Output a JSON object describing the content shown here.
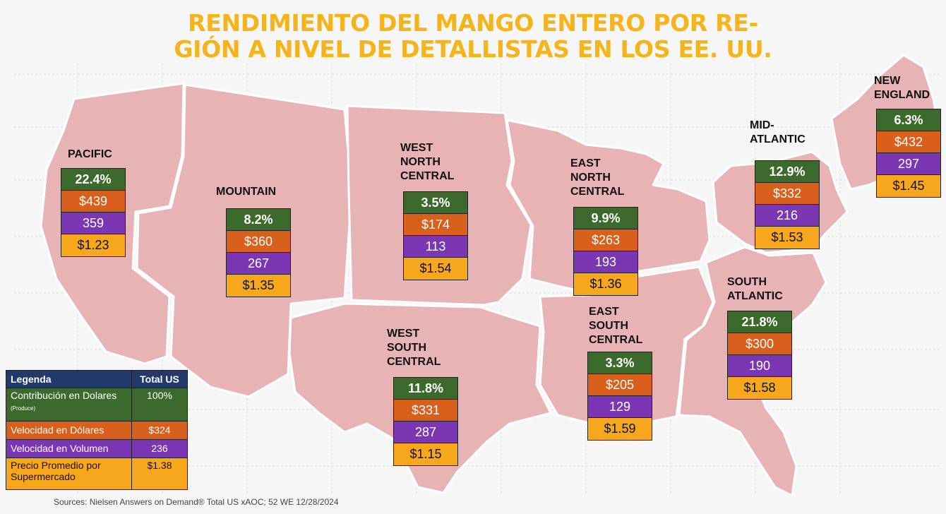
{
  "title": {
    "line1": "RENDIMIENTO DEL MANGO ENTERO POR RE-",
    "line2": "GIÓN A NIVEL DE DETALLISTAS EN LOS EE. UU."
  },
  "colors": {
    "map_fill": "#e8b3b5",
    "title": "#f4b41a",
    "share": "#3c6a2c",
    "dollar_velocity": "#d8601c",
    "volume_velocity": "#7b37b3",
    "avg_price": "#f7a71c",
    "legend_header": "#23396b"
  },
  "regions": {
    "pacific": {
      "name": "PACIFIC",
      "share": "22.4%",
      "dollar": "$439",
      "volume": "359",
      "price": "$1.23"
    },
    "mountain": {
      "name": "MOUNTAIN",
      "share": "8.2%",
      "dollar": "$360",
      "volume": "267",
      "price": "$1.35"
    },
    "wnc": {
      "name_l1": "WEST",
      "name_l2": "NORTH",
      "name_l3": "CENTRAL",
      "share": "3.5%",
      "dollar": "$174",
      "volume": "113",
      "price": "$1.54"
    },
    "enc": {
      "name_l1": "EAST",
      "name_l2": "NORTH",
      "name_l3": "CENTRAL",
      "share": "9.9%",
      "dollar": "$263",
      "volume": "193",
      "price": "$1.36"
    },
    "mid_atlantic": {
      "name_l1": "MID-",
      "name_l2": "ATLANTIC",
      "share": "12.9%",
      "dollar": "$332",
      "volume": "216",
      "price": "$1.53"
    },
    "new_england": {
      "name_l1": "NEW",
      "name_l2": "ENGLAND",
      "share": "6.3%",
      "dollar": "$432",
      "volume": "297",
      "price": "$1.45"
    },
    "wsc": {
      "name_l1": "WEST",
      "name_l2": "SOUTH",
      "name_l3": "CENTRAL",
      "share": "11.8%",
      "dollar": "$331",
      "volume": "287",
      "price": "$1.15"
    },
    "esc": {
      "name_l1": "EAST",
      "name_l2": "SOUTH",
      "name_l3": "CENTRAL",
      "share": "3.3%",
      "dollar": "$205",
      "volume": "129",
      "price": "$1.59"
    },
    "south_atlantic": {
      "name_l1": "SOUTH",
      "name_l2": "ATLANTIC",
      "share": "21.8%",
      "dollar": "$300",
      "volume": "190",
      "price": "$1.58"
    }
  },
  "legend": {
    "header_label": "Legenda",
    "header_total": "Total US",
    "rows": [
      {
        "label": "Contribución en Dolares",
        "note": "(Produce)",
        "value": "100%"
      },
      {
        "label": "Velocidad en Dólares",
        "note": "",
        "value": "$324"
      },
      {
        "label": "Velocidad en Volumen",
        "note": "",
        "value": "236"
      },
      {
        "label": "Precio Promedio por Supermercado",
        "note": "",
        "value": "$1.38"
      }
    ]
  },
  "source": {
    "text": "Sources: Nielsen Answers on Demand® Total US xAOC; 52 WE 12/28/2024"
  }
}
